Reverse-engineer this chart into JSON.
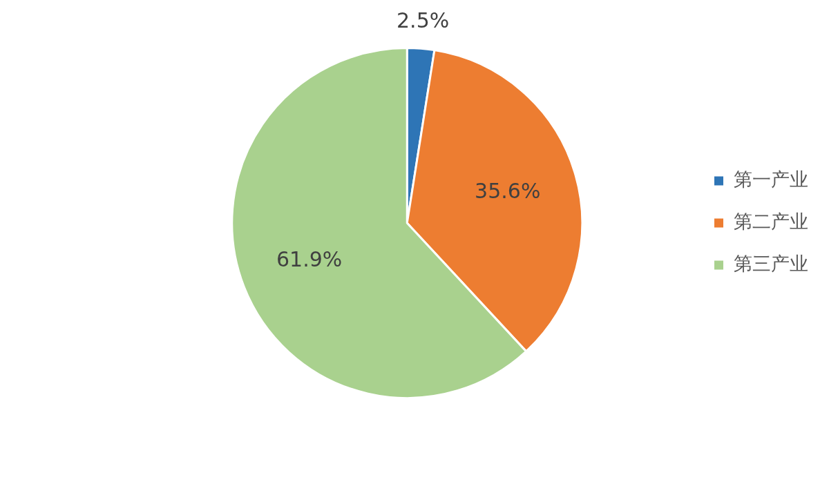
{
  "chart_data": {
    "type": "pie",
    "categories": [
      "第一产业",
      "第二产业",
      "第三产业"
    ],
    "values": [
      2.5,
      35.6,
      61.9
    ],
    "colors": [
      "#2e75b6",
      "#ed7d31",
      "#a9d18e"
    ],
    "value_labels": [
      "2.5%",
      "35.6%",
      "61.9%"
    ],
    "legend": "right"
  }
}
